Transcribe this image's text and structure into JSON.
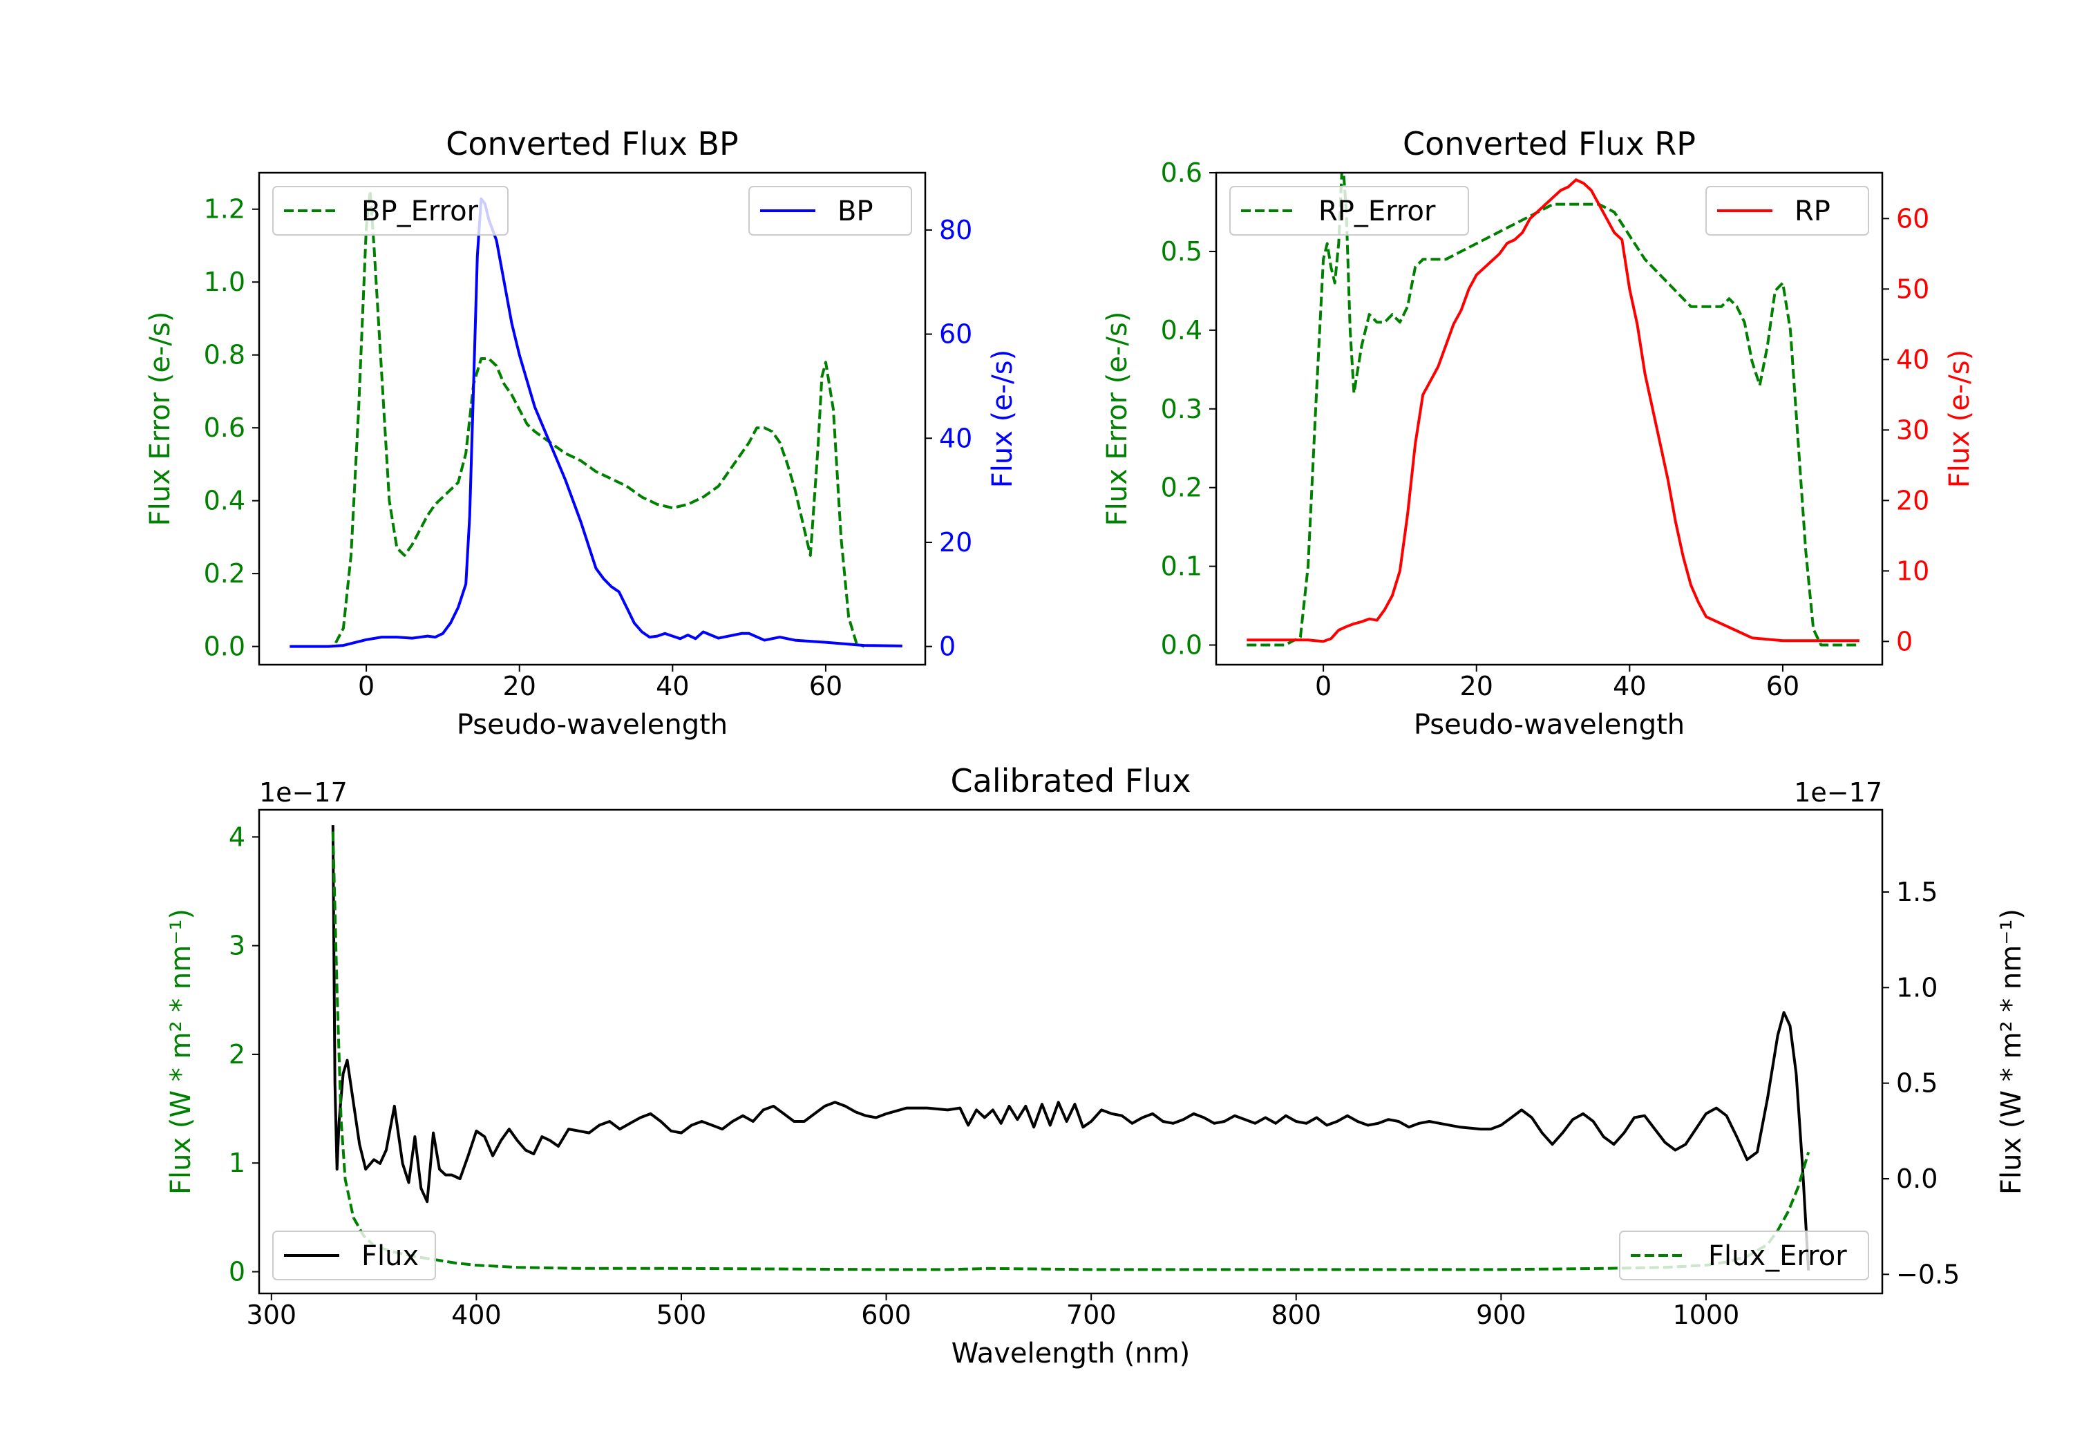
{
  "colors": {
    "green": "#008000",
    "blue": "#0000ff",
    "red": "#ff0000",
    "black": "#000000"
  },
  "chart_data": [
    {
      "id": "bp",
      "type": "line",
      "title": "Converted Flux BP",
      "xlabel": "Pseudo-wavelength",
      "ylabel_left": "Flux Error (e-/s)",
      "ylabel_right": "Flux (e-/s)",
      "xlim": [
        -14,
        73
      ],
      "ylim_left": [
        -0.05,
        1.3
      ],
      "ylim_right": [
        -3.5,
        91
      ],
      "xticks": [
        0,
        20,
        40,
        60
      ],
      "yticks_left": [
        0.0,
        0.2,
        0.4,
        0.6,
        0.8,
        1.0,
        1.2
      ],
      "yticks_right": [
        0,
        20,
        40,
        60,
        80
      ],
      "series": [
        {
          "name": "BP_Error",
          "axis": "left",
          "style": "dashed",
          "color": "#008000",
          "x": [
            -4,
            -3,
            -2,
            -1,
            0,
            0.5,
            1,
            2,
            3,
            4,
            5,
            6,
            7,
            8,
            9,
            10,
            11,
            12,
            13,
            14,
            15,
            16,
            17,
            18,
            19,
            20,
            21,
            22,
            24,
            26,
            28,
            30,
            32,
            34,
            36,
            38,
            40,
            42,
            44,
            46,
            48,
            50,
            51,
            52,
            53,
            54,
            55,
            56,
            57,
            58,
            59,
            59.5,
            60,
            61,
            62,
            63,
            64,
            65
          ],
          "values": [
            0.01,
            0.05,
            0.25,
            0.65,
            1.15,
            1.25,
            1.1,
            0.75,
            0.4,
            0.27,
            0.25,
            0.28,
            0.32,
            0.36,
            0.39,
            0.41,
            0.43,
            0.45,
            0.53,
            0.72,
            0.79,
            0.79,
            0.77,
            0.72,
            0.69,
            0.65,
            0.61,
            0.59,
            0.56,
            0.53,
            0.51,
            0.48,
            0.46,
            0.44,
            0.41,
            0.39,
            0.38,
            0.39,
            0.41,
            0.44,
            0.5,
            0.56,
            0.6,
            0.6,
            0.59,
            0.56,
            0.5,
            0.43,
            0.34,
            0.25,
            0.55,
            0.74,
            0.78,
            0.65,
            0.3,
            0.08,
            0.01,
            0.0
          ]
        },
        {
          "name": "BP",
          "axis": "right",
          "style": "solid",
          "color": "#0000ff",
          "x": [
            -10,
            -5,
            -3,
            0,
            2,
            4,
            6,
            8,
            9,
            10,
            11,
            12,
            13,
            13.5,
            14,
            14.5,
            15,
            15.5,
            16,
            17,
            18,
            19,
            20,
            22,
            24,
            26,
            28,
            30,
            31,
            32,
            33,
            34,
            35,
            36,
            37,
            38,
            39,
            40,
            41,
            42,
            43,
            44,
            46,
            48,
            49,
            50,
            52,
            54,
            56,
            60,
            65,
            70
          ],
          "values": [
            0,
            0,
            0.2,
            1.3,
            1.8,
            1.8,
            1.6,
            2.0,
            1.8,
            2.5,
            4.5,
            7.5,
            12,
            25,
            50,
            75,
            86,
            85,
            82,
            78,
            70,
            62,
            56,
            46,
            39,
            32,
            24,
            15,
            13,
            11.5,
            10.5,
            7.5,
            4.5,
            2.8,
            1.8,
            2.0,
            2.5,
            2.0,
            1.5,
            2.2,
            1.5,
            2.8,
            1.6,
            2.2,
            2.5,
            2.5,
            1.2,
            1.8,
            1.2,
            0.8,
            0.2,
            0.1
          ]
        }
      ],
      "legends": [
        {
          "label": "BP_Error",
          "position": "upper left"
        },
        {
          "label": "BP",
          "position": "upper right"
        }
      ]
    },
    {
      "id": "rp",
      "type": "line",
      "title": "Converted Flux RP",
      "xlabel": "Pseudo-wavelength",
      "ylabel_left": "Flux Error (e-/s)",
      "ylabel_right": "Flux (e-/s)",
      "xlim": [
        -14,
        73
      ],
      "ylim_left": [
        -0.025,
        0.6
      ],
      "ylim_right": [
        -3.3,
        66.5
      ],
      "xticks": [
        0,
        20,
        40,
        60
      ],
      "yticks_left": [
        0.0,
        0.1,
        0.2,
        0.3,
        0.4,
        0.5,
        0.6
      ],
      "yticks_right": [
        0,
        10,
        20,
        30,
        40,
        50,
        60
      ],
      "series": [
        {
          "name": "RP_Error",
          "axis": "left",
          "style": "dashed",
          "color": "#008000",
          "x": [
            -10,
            -5,
            -3,
            -2,
            -1,
            0,
            0.5,
            1,
            1.5,
            2,
            2.5,
            3,
            3.5,
            4,
            5,
            6,
            7,
            8,
            9,
            10,
            11,
            12,
            13,
            14,
            16,
            18,
            20,
            22,
            24,
            26,
            28,
            30,
            32,
            34,
            36,
            38,
            40,
            42,
            44,
            46,
            48,
            50,
            52,
            53,
            54,
            55,
            56,
            57,
            58,
            59,
            60,
            61,
            62,
            63,
            64,
            65,
            70
          ],
          "values": [
            0.0,
            0.0,
            0.01,
            0.1,
            0.3,
            0.49,
            0.51,
            0.48,
            0.46,
            0.51,
            0.62,
            0.55,
            0.4,
            0.32,
            0.38,
            0.42,
            0.41,
            0.41,
            0.42,
            0.41,
            0.43,
            0.48,
            0.49,
            0.49,
            0.49,
            0.5,
            0.51,
            0.52,
            0.53,
            0.54,
            0.55,
            0.56,
            0.56,
            0.56,
            0.56,
            0.55,
            0.52,
            0.49,
            0.47,
            0.45,
            0.43,
            0.43,
            0.43,
            0.44,
            0.43,
            0.41,
            0.36,
            0.33,
            0.38,
            0.45,
            0.46,
            0.4,
            0.26,
            0.12,
            0.02,
            0.0,
            0.0
          ]
        },
        {
          "name": "RP",
          "axis": "right",
          "style": "solid",
          "color": "#ff0000",
          "x": [
            -10,
            -5,
            -2,
            0,
            1,
            2,
            3,
            4,
            5,
            6,
            7,
            8,
            9,
            10,
            11,
            12,
            13,
            14,
            15,
            16,
            17,
            18,
            19,
            20,
            21,
            22,
            23,
            24,
            25,
            26,
            27,
            28,
            29,
            30,
            31,
            32,
            33,
            34,
            35,
            36,
            37,
            38,
            39,
            40,
            41,
            42,
            43,
            44,
            45,
            46,
            47,
            48,
            49,
            50,
            52,
            54,
            56,
            60,
            65,
            70
          ],
          "values": [
            0.2,
            0.2,
            0.2,
            0,
            0.4,
            1.6,
            2.1,
            2.5,
            2.8,
            3.2,
            3.0,
            4.5,
            6.5,
            10,
            18,
            28,
            35,
            37,
            39,
            42,
            45,
            47,
            50,
            52,
            53,
            54,
            55,
            56.5,
            57,
            58,
            60,
            61,
            62,
            63,
            64,
            64.5,
            65.5,
            65,
            64,
            62,
            60,
            58,
            57,
            50,
            45,
            38,
            33,
            28,
            23,
            17,
            12,
            8,
            5.5,
            3.5,
            2.5,
            1.5,
            0.5,
            0.1,
            0.1,
            0.1
          ]
        }
      ],
      "legends": [
        {
          "label": "RP_Error",
          "position": "upper left"
        },
        {
          "label": "RP",
          "position": "upper right"
        }
      ]
    },
    {
      "id": "cal",
      "type": "line",
      "title": "Calibrated Flux",
      "xlabel": "Wavelength (nm)",
      "ylabel_left": "Flux (W * m² * nm⁻¹)",
      "ylabel_right": "Flux (W * m² * nm⁻¹)",
      "offset_left": "1e−17",
      "offset_right": "1e−17",
      "xlim": [
        294,
        1086
      ],
      "ylim_left": [
        -0.2,
        4.25
      ],
      "ylim_right": [
        -0.6,
        1.93
      ],
      "xticks": [
        300,
        400,
        500,
        600,
        700,
        800,
        900,
        1000
      ],
      "yticks_left": [
        0,
        1,
        2,
        3,
        4
      ],
      "yticks_right": [
        -0.5,
        0.0,
        0.5,
        1.0,
        1.5
      ],
      "yticklabels_right": [
        "−0.5",
        "0.0",
        "0.5",
        "1.0",
        "1.5"
      ],
      "series": [
        {
          "name": "Flux",
          "axis": "right",
          "style": "solid",
          "color": "#000000",
          "x": [
            330,
            331,
            332,
            333,
            335,
            337,
            340,
            343,
            346,
            350,
            353,
            356,
            360,
            364,
            367,
            370,
            373,
            376,
            379,
            382,
            385,
            388,
            392,
            396,
            400,
            404,
            408,
            412,
            416,
            420,
            424,
            428,
            432,
            436,
            440,
            445,
            450,
            455,
            460,
            465,
            470,
            475,
            480,
            485,
            490,
            495,
            500,
            505,
            510,
            515,
            520,
            525,
            530,
            535,
            540,
            545,
            550,
            555,
            560,
            565,
            570,
            575,
            580,
            585,
            590,
            595,
            600,
            610,
            620,
            630,
            636,
            640,
            644,
            648,
            652,
            656,
            660,
            664,
            668,
            672,
            676,
            680,
            684,
            688,
            692,
            696,
            700,
            705,
            710,
            715,
            720,
            725,
            730,
            735,
            740,
            745,
            750,
            755,
            760,
            765,
            770,
            775,
            780,
            785,
            790,
            795,
            800,
            805,
            810,
            815,
            820,
            825,
            830,
            835,
            840,
            845,
            850,
            855,
            860,
            865,
            870,
            880,
            890,
            895,
            900,
            905,
            910,
            915,
            920,
            925,
            930,
            935,
            940,
            945,
            950,
            955,
            960,
            965,
            970,
            975,
            980,
            985,
            990,
            995,
            1000,
            1005,
            1010,
            1015,
            1020,
            1025,
            1030,
            1035,
            1038,
            1041,
            1044,
            1047,
            1050
          ],
          "values": [
            1.85,
            0.5,
            0.05,
            0.3,
            0.55,
            0.62,
            0.4,
            0.18,
            0.05,
            0.1,
            0.08,
            0.15,
            0.38,
            0.08,
            -0.02,
            0.22,
            -0.05,
            -0.12,
            0.24,
            0.05,
            0.02,
            0.02,
            0.0,
            0.12,
            0.25,
            0.22,
            0.12,
            0.2,
            0.26,
            0.2,
            0.15,
            0.13,
            0.22,
            0.2,
            0.17,
            0.26,
            0.25,
            0.24,
            0.28,
            0.3,
            0.26,
            0.29,
            0.32,
            0.34,
            0.3,
            0.25,
            0.24,
            0.28,
            0.3,
            0.28,
            0.26,
            0.3,
            0.33,
            0.3,
            0.36,
            0.38,
            0.34,
            0.3,
            0.3,
            0.34,
            0.38,
            0.4,
            0.38,
            0.35,
            0.33,
            0.32,
            0.34,
            0.37,
            0.37,
            0.36,
            0.37,
            0.28,
            0.36,
            0.32,
            0.36,
            0.29,
            0.38,
            0.31,
            0.38,
            0.27,
            0.39,
            0.28,
            0.4,
            0.3,
            0.39,
            0.27,
            0.3,
            0.36,
            0.34,
            0.33,
            0.29,
            0.32,
            0.34,
            0.3,
            0.29,
            0.31,
            0.34,
            0.32,
            0.29,
            0.3,
            0.33,
            0.31,
            0.29,
            0.32,
            0.29,
            0.33,
            0.3,
            0.29,
            0.32,
            0.28,
            0.3,
            0.33,
            0.3,
            0.28,
            0.29,
            0.31,
            0.3,
            0.27,
            0.29,
            0.3,
            0.29,
            0.27,
            0.26,
            0.26,
            0.28,
            0.32,
            0.36,
            0.32,
            0.24,
            0.18,
            0.24,
            0.31,
            0.34,
            0.3,
            0.22,
            0.18,
            0.24,
            0.32,
            0.33,
            0.26,
            0.19,
            0.15,
            0.18,
            0.26,
            0.34,
            0.37,
            0.33,
            0.22,
            0.1,
            0.14,
            0.42,
            0.75,
            0.87,
            0.8,
            0.55,
            0.08,
            -0.48
          ]
        },
        {
          "name": "Flux_Error",
          "axis": "left",
          "style": "dashed",
          "color": "#008000",
          "x": [
            330,
            332,
            334,
            336,
            340,
            345,
            350,
            360,
            370,
            380,
            390,
            400,
            420,
            450,
            500,
            600,
            630,
            650,
            700,
            800,
            900,
            950,
            980,
            1000,
            1010,
            1020,
            1030,
            1035,
            1040,
            1045,
            1050
          ],
          "values": [
            4.05,
            2.6,
            1.4,
            0.85,
            0.5,
            0.33,
            0.24,
            0.18,
            0.14,
            0.11,
            0.08,
            0.06,
            0.04,
            0.03,
            0.03,
            0.02,
            0.02,
            0.03,
            0.02,
            0.02,
            0.02,
            0.03,
            0.04,
            0.06,
            0.09,
            0.14,
            0.25,
            0.38,
            0.55,
            0.78,
            1.1
          ]
        }
      ],
      "legends": [
        {
          "label": "Flux",
          "position": "lower left"
        },
        {
          "label": "Flux_Error",
          "position": "lower right"
        }
      ]
    }
  ]
}
